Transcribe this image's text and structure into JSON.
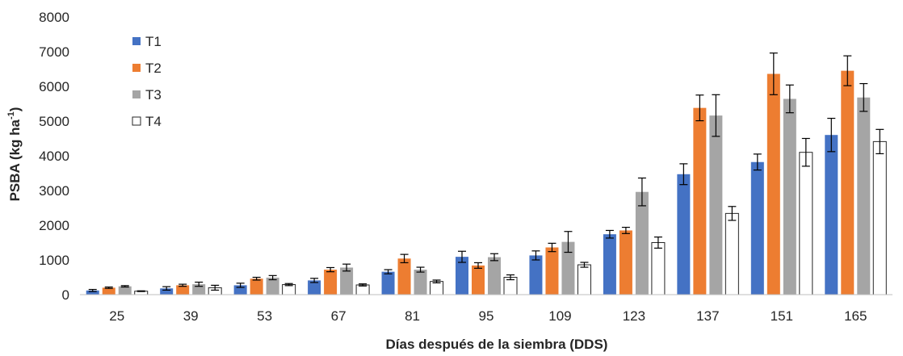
{
  "chart_data": {
    "type": "bar",
    "xlabel": "Días después de la siembra  (DDS)",
    "ylabel": "PSBA (kg ha",
    "ylabel_sup": "-1",
    "ylabel_tail": ")",
    "ylim": [
      0,
      8000
    ],
    "yticks": [
      0,
      1000,
      2000,
      3000,
      4000,
      5000,
      6000,
      7000,
      8000
    ],
    "ytick_labels": [
      "0",
      "1000",
      "2000",
      "3000",
      "4000",
      "5000",
      "6000",
      "7000",
      "8000"
    ],
    "categories": [
      "25",
      "39",
      "53",
      "67",
      "81",
      "95",
      "109",
      "123",
      "137",
      "151",
      "165"
    ],
    "grid": false,
    "legend_position": "top-left",
    "series": [
      {
        "name": "T1",
        "color": "#4472C4",
        "values": [
          120,
          180,
          270,
          410,
          660,
          1090,
          1130,
          1740,
          3470,
          3820,
          4600
        ],
        "errors": [
          30,
          50,
          60,
          60,
          60,
          160,
          130,
          110,
          300,
          230,
          480
        ]
      },
      {
        "name": "T2",
        "color": "#ED7D31",
        "values": [
          200,
          270,
          460,
          720,
          1040,
          840,
          1360,
          1850,
          5380,
          6360,
          6450
        ],
        "errors": [
          20,
          30,
          40,
          60,
          120,
          80,
          120,
          90,
          370,
          600,
          430
        ]
      },
      {
        "name": "T3",
        "color": "#A5A5A5",
        "values": [
          240,
          300,
          490,
          780,
          720,
          1080,
          1520,
          2960,
          5160,
          5640,
          5680
        ],
        "errors": [
          20,
          60,
          60,
          100,
          70,
          100,
          300,
          400,
          600,
          400,
          400
        ]
      },
      {
        "name": "T4",
        "color": "#FFFFFF",
        "values": [
          100,
          200,
          290,
          280,
          380,
          500,
          860,
          1500,
          2340,
          4100,
          4410
        ],
        "errors": [
          10,
          70,
          30,
          30,
          40,
          70,
          70,
          160,
          200,
          400,
          350
        ]
      }
    ]
  }
}
